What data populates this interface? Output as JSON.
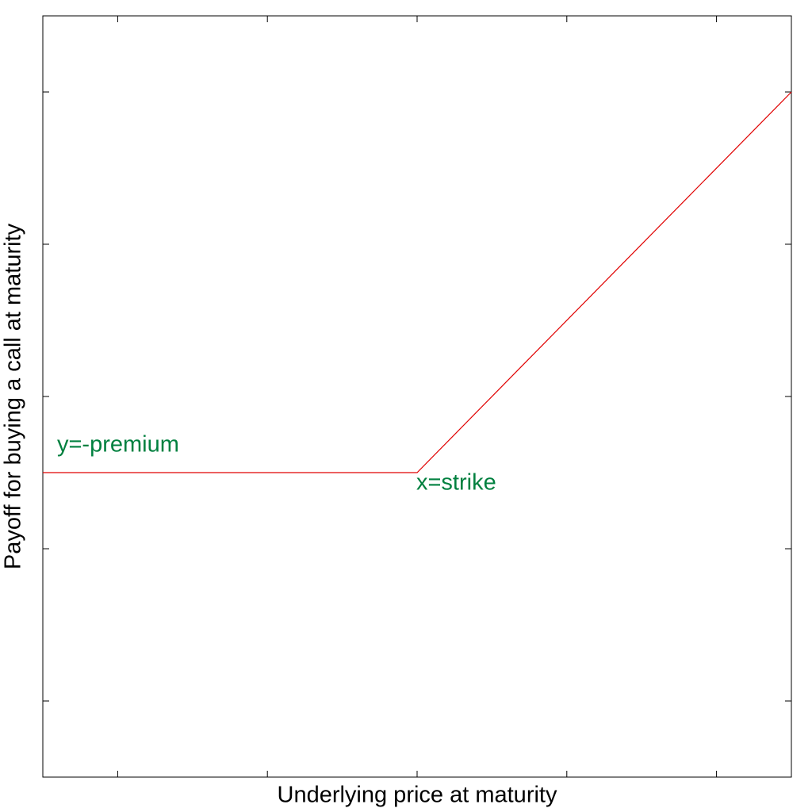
{
  "chart_data": {
    "type": "line",
    "x_label": "Underlying price at maturity",
    "y_label": "Payoff for buying a call at maturity",
    "x": [
      0,
      2.5,
      5
    ],
    "series": [
      {
        "color": "#e00000",
        "values": [
          2,
          2,
          4.5
        ]
      }
    ],
    "xlim": [
      0,
      5
    ],
    "ylim": [
      0,
      5
    ],
    "xticks": [
      0.5,
      1.5,
      2.5,
      3.5,
      4.5
    ],
    "yticks": [
      0.5,
      1.5,
      2.5,
      3.5,
      4.5
    ],
    "annotations": [
      {
        "text": "y=-premium",
        "color": "#00803f"
      },
      {
        "text": "x=strike",
        "color": "#00803f"
      }
    ]
  }
}
